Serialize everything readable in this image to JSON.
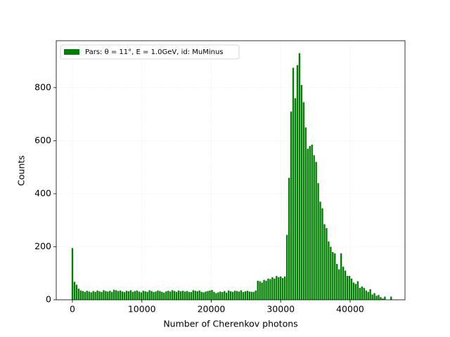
{
  "chart_data": {
    "type": "bar",
    "xlabel": "Number of Cherenkov photons",
    "ylabel": "Counts",
    "series": [
      {
        "name": "Pars: θ = 11°, E = 1.0GeV, id: MuMinus",
        "color": "#008000",
        "x": [
          0,
          300,
          600,
          900,
          1200,
          1500,
          1800,
          2100,
          2400,
          2700,
          3000,
          3300,
          3600,
          3900,
          4200,
          4500,
          4800,
          5100,
          5400,
          5700,
          6000,
          6300,
          6600,
          6900,
          7200,
          7500,
          7800,
          8100,
          8400,
          8700,
          9000,
          9300,
          9600,
          9900,
          10200,
          10500,
          10800,
          11100,
          11400,
          11700,
          12000,
          12300,
          12600,
          12900,
          13200,
          13500,
          13800,
          14100,
          14400,
          14700,
          15000,
          15300,
          15600,
          15900,
          16200,
          16500,
          16800,
          17100,
          17400,
          17700,
          18000,
          18300,
          18600,
          18900,
          19200,
          19500,
          19800,
          20100,
          20400,
          20700,
          21000,
          21300,
          21600,
          21900,
          22200,
          22500,
          22800,
          23100,
          23400,
          23700,
          24000,
          24300,
          24600,
          24900,
          25200,
          25500,
          25800,
          26100,
          26400,
          26700,
          27000,
          27300,
          27600,
          27900,
          28200,
          28500,
          28800,
          29100,
          29400,
          29700,
          30000,
          30300,
          30600,
          30900,
          31200,
          31500,
          31800,
          32100,
          32400,
          32700,
          33000,
          33300,
          33600,
          33900,
          34200,
          34500,
          34800,
          35100,
          35400,
          35700,
          36000,
          36300,
          36600,
          36900,
          37200,
          37500,
          37800,
          38100,
          38400,
          38700,
          39000,
          39300,
          39600,
          39900,
          40200,
          40500,
          40800,
          41100,
          41400,
          41700,
          42000,
          42300,
          42600,
          42900,
          43200,
          43500,
          43800,
          44100,
          44400,
          44700,
          45000,
          45300,
          45600,
          45900,
          46200
        ],
        "values": [
          195,
          68,
          57,
          42,
          35,
          33,
          30,
          34,
          31,
          28,
          33,
          30,
          35,
          32,
          29,
          36,
          33,
          31,
          34,
          30,
          38,
          36,
          33,
          35,
          31,
          29,
          34,
          32,
          36,
          30,
          33,
          35,
          31,
          28,
          34,
          32,
          30,
          36,
          33,
          29,
          31,
          35,
          33,
          30,
          27,
          32,
          34,
          31,
          36,
          33,
          30,
          35,
          32,
          34,
          31,
          33,
          30,
          29,
          36,
          34,
          32,
          35,
          30,
          28,
          31,
          33,
          35,
          37,
          30,
          25,
          28,
          31,
          29,
          33,
          27,
          35,
          32,
          30,
          34,
          33,
          31,
          36,
          29,
          32,
          34,
          31,
          30,
          30,
          35,
          72,
          70,
          65,
          75,
          72,
          80,
          78,
          85,
          80,
          90,
          85,
          88,
          82,
          88,
          245,
          460,
          710,
          875,
          760,
          885,
          930,
          810,
          745,
          650,
          570,
          580,
          585,
          545,
          520,
          440,
          370,
          345,
          285,
          270,
          220,
          200,
          180,
          175,
          135,
          115,
          175,
          125,
          110,
          90,
          90,
          80,
          65,
          60,
          70,
          45,
          50,
          45,
          35,
          30,
          40,
          20,
          25,
          15,
          18,
          10,
          5,
          12,
          0,
          0,
          12,
          0
        ]
      }
    ],
    "xlim": [
      -2329,
      47899
    ],
    "ylim": [
      0,
      977
    ],
    "xticks": [
      0,
      10000,
      20000,
      30000,
      40000
    ],
    "yticks": [
      0,
      200,
      400,
      600,
      800
    ],
    "grid": true,
    "legend": "upper left"
  }
}
